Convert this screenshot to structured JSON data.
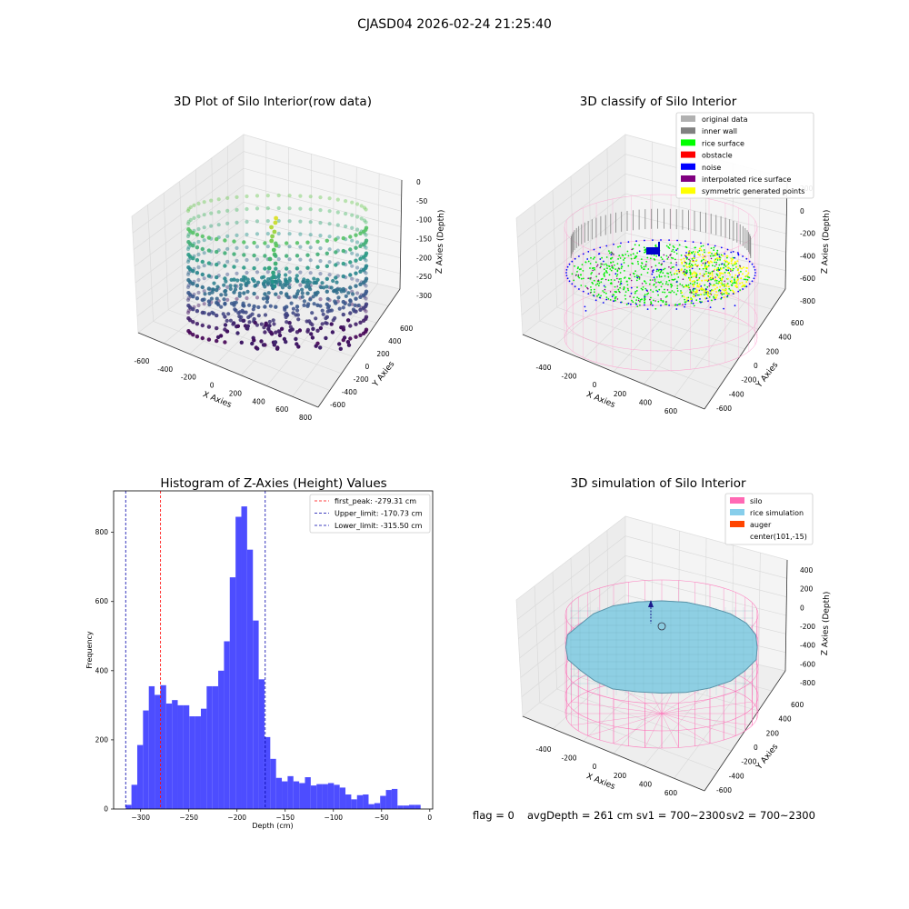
{
  "figure": {
    "suptitle": "CJASD04 2026-02-24 21:25:40",
    "footer": {
      "flag": "flag = 0",
      "avg_depth": "avgDepth = 261 cm",
      "sv1": "sv1 = 700~2300",
      "sv2": "sv2 = 700~2300"
    }
  },
  "chart_data": [
    {
      "type": "scatter3d",
      "title": "3D Plot of Silo Interior(row data)",
      "xlabel": "X Axies",
      "ylabel": "Y Axies",
      "zlabel": "Z Axies (Depth)",
      "x_ticks": [
        "-600",
        "-400",
        "-200",
        "0",
        "200",
        "400",
        "600",
        "800"
      ],
      "y_ticks": [
        "-600",
        "-400",
        "-200",
        "0",
        "200",
        "400",
        "600"
      ],
      "z_ticks": [
        "0",
        "-50",
        "-100",
        "-150",
        "-200",
        "-250",
        "-300"
      ],
      "colormap": "viridis",
      "grid": true
    },
    {
      "type": "scatter3d",
      "title": "3D classify of Silo Interior",
      "xlabel": "X Axies",
      "ylabel": "Y Axies",
      "zlabel": "Z Axies (Depth)",
      "x_ticks": [
        "-400",
        "-200",
        "0",
        "200",
        "400",
        "600"
      ],
      "y_ticks": [
        "-600",
        "-400",
        "-200",
        "0",
        "200",
        "400",
        "600"
      ],
      "z_ticks": [
        "200",
        "0",
        "-200",
        "-400",
        "-600",
        "-800"
      ],
      "legend_position": "top-right",
      "legend": [
        {
          "label": "original data",
          "color": "#b0b0b0"
        },
        {
          "label": "inner wall",
          "color": "#808080"
        },
        {
          "label": "rice surface",
          "color": "#00ff00"
        },
        {
          "label": "obstacle",
          "color": "#ff0000"
        },
        {
          "label": "noise",
          "color": "#0000ff"
        },
        {
          "label": "interpolated rice surface",
          "color": "#800080"
        },
        {
          "label": "symmetric generated points",
          "color": "#ffff00"
        }
      ],
      "grid": true
    },
    {
      "type": "bar",
      "title": "Histogram of Z-Axies (Height) Values",
      "xlabel": "Depth (cm)",
      "ylabel": "Frequency",
      "xlim": [
        -328,
        3
      ],
      "ylim": [
        0,
        920
      ],
      "x_ticks": [
        -300,
        -250,
        -200,
        -150,
        -100,
        -50,
        0
      ],
      "y_ticks": [
        0,
        200,
        400,
        600,
        800
      ],
      "bar_color": "#4d4dff",
      "bin_start": -315.5,
      "bin_width": 6.0,
      "values": [
        12,
        70,
        185,
        285,
        355,
        330,
        358,
        305,
        315,
        300,
        300,
        268,
        268,
        290,
        355,
        355,
        400,
        485,
        670,
        845,
        875,
        750,
        545,
        375,
        208,
        145,
        90,
        80,
        95,
        80,
        75,
        92,
        68,
        72,
        72,
        75,
        70,
        62,
        42,
        28,
        40,
        42,
        14,
        17,
        38,
        55,
        58,
        10,
        10,
        12,
        12
      ],
      "vlines": [
        {
          "label": "first_peak: -279.31 cm",
          "x": -279.31,
          "color": "#ff0000",
          "style": "dashed"
        },
        {
          "label": "Upper_limit: -170.73 cm",
          "x": -170.73,
          "color": "#0000aa",
          "style": "dashed"
        },
        {
          "label": "Lower_limit: -315.50 cm",
          "x": -315.5,
          "color": "#0000aa",
          "style": "dashed"
        }
      ],
      "legend_position": "top-right"
    },
    {
      "type": "surface3d",
      "title": "3D simulation of Silo Interior",
      "xlabel": "X Axies",
      "ylabel": "Y Axies",
      "zlabel": "Z Axies (Depth)",
      "x_ticks": [
        "-400",
        "-200",
        "0",
        "200",
        "400",
        "600"
      ],
      "y_ticks": [
        "-600",
        "-400",
        "-200",
        "0",
        "200",
        "400",
        "600"
      ],
      "z_ticks": [
        "400",
        "200",
        "0",
        "-200",
        "-400",
        "-600",
        "-800"
      ],
      "legend_position": "top-right",
      "legend": [
        {
          "label": "silo",
          "color": "#ff69b4"
        },
        {
          "label": "rice simulation",
          "color": "#87ceeb"
        },
        {
          "label": "auger",
          "color": "#ff4500"
        },
        {
          "label": "center(101,-15)",
          "color": ""
        }
      ],
      "grid": true
    }
  ]
}
